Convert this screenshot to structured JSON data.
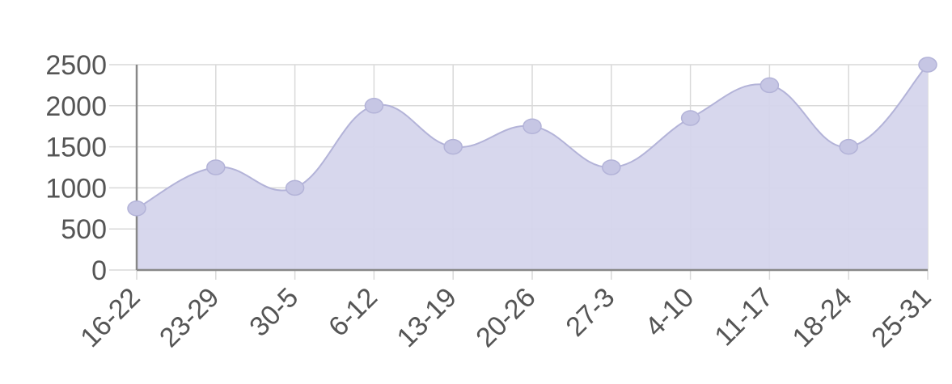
{
  "chart_data": {
    "type": "area",
    "categories": [
      "16-22",
      "23-29",
      "30-5",
      "6-12",
      "13-19",
      "20-26",
      "27-3",
      "4-10",
      "11-17",
      "18-24",
      "25-31"
    ],
    "series": [
      {
        "values": [
          750,
          1250,
          1000,
          2000,
          1500,
          1750,
          1250,
          1850,
          2250,
          1500,
          2500
        ]
      }
    ],
    "yticks": [
      "0",
      "500",
      "1000",
      "1500",
      "2000",
      "2500"
    ],
    "ylim": [
      0,
      2500
    ],
    "grid": true,
    "legend": "none",
    "fill_color": "#d5d5ec",
    "line_color": "#b3b3d8",
    "point_color": "#c6c6e4"
  }
}
